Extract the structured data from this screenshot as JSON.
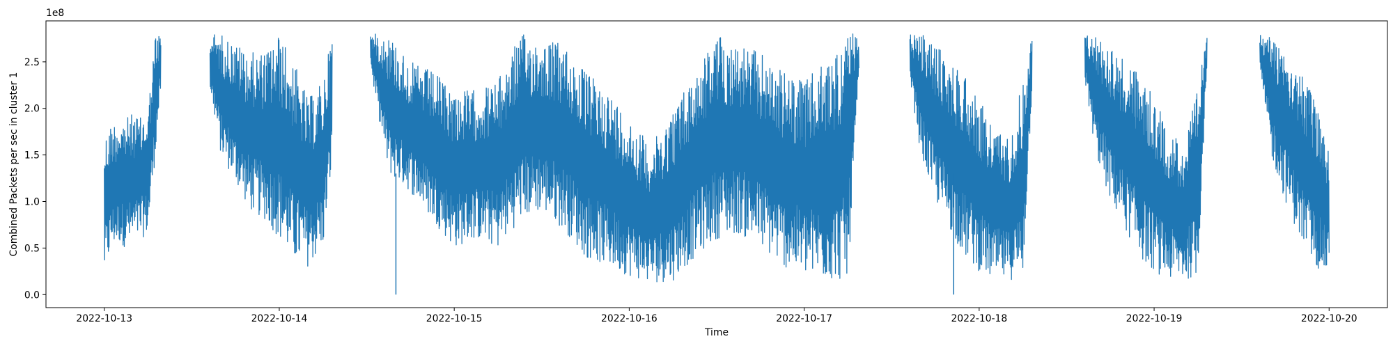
{
  "chart_data": {
    "type": "line",
    "title": "",
    "xlabel": "Time",
    "ylabel": "Combined Packets per sec in cluster 1",
    "y_offset_label": "1e8",
    "ylim": [
      -14000000.0,
      294000000.0
    ],
    "xlim": [
      "2022-10-12T16:00",
      "2022-10-20T08:00"
    ],
    "x_ticks": [
      "2022-10-13",
      "2022-10-14",
      "2022-10-15",
      "2022-10-16",
      "2022-10-17",
      "2022-10-18",
      "2022-10-19",
      "2022-10-20"
    ],
    "y_ticks": [
      "0.0",
      "0.5",
      "1.0",
      "1.5",
      "2.0",
      "2.5"
    ],
    "y_tick_values": [
      0,
      50000000.0,
      100000000.0,
      150000000.0,
      200000000.0,
      250000000.0
    ],
    "grid": false,
    "legend": "none",
    "series": [
      {
        "color": "#1f77b4",
        "segments": [
          {
            "x": [
              "2022-10-13T00:00",
              "2022-10-13T01:00",
              "2022-10-13T02:00",
              "2022-10-13T03:00",
              "2022-10-13T04:00",
              "2022-10-13T05:00",
              "2022-10-13T06:00",
              "2022-10-13T07:00",
              "2022-10-13T07:45"
            ],
            "min": [
              20000000.0,
              50000000.0,
              55000000.0,
              50000000.0,
              55000000.0,
              60000000.0,
              65000000.0,
              150000000.0,
              220000000.0
            ],
            "max": [
              170000000.0,
              185000000.0,
              190000000.0,
              190000000.0,
              195000000.0,
              190000000.0,
              200000000.0,
              280000000.0,
              280000000.0
            ]
          },
          {
            "x": [
              "2022-10-13T14:30",
              "2022-10-13T16:00",
              "2022-10-13T18:00",
              "2022-10-13T20:00",
              "2022-10-13T22:00",
              "2022-10-14T00:00",
              "2022-10-14T02:00",
              "2022-10-14T04:00",
              "2022-10-14T06:00",
              "2022-10-14T07:15"
            ],
            "min": [
              220000000.0,
              150000000.0,
              120000000.0,
              90000000.0,
              80000000.0,
              60000000.0,
              35000000.0,
              30000000.0,
              50000000.0,
              140000000.0
            ],
            "max": [
              280000000.0,
              280000000.0,
              270000000.0,
              260000000.0,
              260000000.0,
              280000000.0,
              250000000.0,
              210000000.0,
              230000000.0,
              280000000.0
            ]
          },
          {
            "x": [
              "2022-10-14T12:30",
              "2022-10-14T13:00",
              "2022-10-14T15:00",
              "2022-10-14T18:00",
              "2022-10-14T21:00",
              "2022-10-15T00:00",
              "2022-10-15T03:00",
              "2022-10-15T06:00",
              "2022-10-15T09:00",
              "2022-10-15T12:00",
              "2022-10-15T15:00",
              "2022-10-15T18:00",
              "2022-10-15T21:00",
              "2022-10-16T00:00",
              "2022-10-16T03:00",
              "2022-10-16T06:00",
              "2022-10-16T09:00",
              "2022-10-16T12:00",
              "2022-10-16T15:00",
              "2022-10-16T18:00",
              "2022-10-16T21:00",
              "2022-10-17T00:00",
              "2022-10-17T03:00",
              "2022-10-17T06:00",
              "2022-10-17T07:30"
            ],
            "min": [
              250000000.0,
              220000000.0,
              130000000.0,
              110000000.0,
              80000000.0,
              50000000.0,
              60000000.0,
              50000000.0,
              80000000.0,
              90000000.0,
              70000000.0,
              40000000.0,
              30000000.0,
              20000000.0,
              12000000.0,
              15000000.0,
              40000000.0,
              60000000.0,
              65000000.0,
              50000000.0,
              30000000.0,
              20000000.0,
              15000000.0,
              15000000.0,
              230000000.0
            ],
            "max": [
              280000000.0,
              280000000.0,
              280000000.0,
              250000000.0,
              240000000.0,
              220000000.0,
              220000000.0,
              230000000.0,
              280000000.0,
              275000000.0,
              270000000.0,
              240000000.0,
              220000000.0,
              190000000.0,
              160000000.0,
              200000000.0,
              240000000.0,
              280000000.0,
              270000000.0,
              260000000.0,
              240000000.0,
              230000000.0,
              250000000.0,
              280000000.0,
              280000000.0
            ]
          },
          {
            "x": [
              "2022-10-17T14:30",
              "2022-10-17T16:00",
              "2022-10-17T18:00",
              "2022-10-17T20:00",
              "2022-10-17T22:00",
              "2022-10-18T00:00",
              "2022-10-18T02:00",
              "2022-10-18T04:00",
              "2022-10-18T06:00",
              "2022-10-18T07:15"
            ],
            "min": [
              230000000.0,
              150000000.0,
              100000000.0,
              70000000.0,
              40000000.0,
              25000000.0,
              15000000.0,
              15000000.0,
              20000000.0,
              220000000.0
            ],
            "max": [
              280000000.0,
              280000000.0,
              270000000.0,
              250000000.0,
              240000000.0,
              210000000.0,
              180000000.0,
              170000000.0,
              230000000.0,
              280000000.0
            ]
          },
          {
            "x": [
              "2022-10-18T14:30",
              "2022-10-18T16:00",
              "2022-10-18T18:00",
              "2022-10-18T20:00",
              "2022-10-18T22:00",
              "2022-10-19T00:00",
              "2022-10-19T02:00",
              "2022-10-19T04:00",
              "2022-10-19T06:00",
              "2022-10-19T07:15"
            ],
            "min": [
              230000000.0,
              150000000.0,
              100000000.0,
              70000000.0,
              40000000.0,
              25000000.0,
              15000000.0,
              15000000.0,
              20000000.0,
              250000000.0
            ],
            "max": [
              280000000.0,
              280000000.0,
              270000000.0,
              250000000.0,
              240000000.0,
              210000000.0,
              180000000.0,
              160000000.0,
              220000000.0,
              280000000.0
            ]
          },
          {
            "x": [
              "2022-10-19T14:30",
              "2022-10-19T16:00",
              "2022-10-19T18:00",
              "2022-10-19T20:00",
              "2022-10-19T22:00",
              "2022-10-20T00:00"
            ],
            "min": [
              240000000.0,
              150000000.0,
              100000000.0,
              60000000.0,
              30000000.0,
              20000000.0
            ],
            "max": [
              280000000.0,
              280000000.0,
              270000000.0,
              240000000.0,
              210000000.0,
              160000000.0
            ]
          }
        ],
        "spikes": [
          {
            "x": "2022-10-14T16:00",
            "y": 0
          },
          {
            "x": "2022-10-17T20:30",
            "y": 0
          }
        ]
      }
    ]
  }
}
